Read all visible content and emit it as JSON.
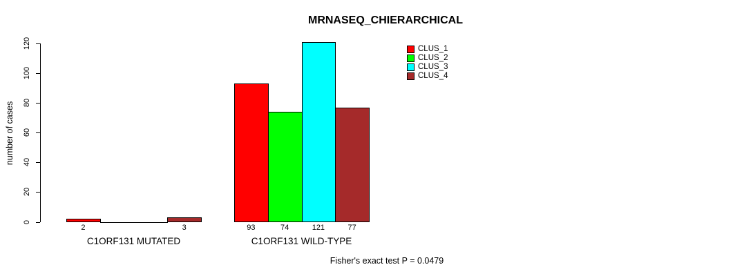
{
  "title": "MRNASEQ_CHIERARCHICAL",
  "footer": "Fisher's exact test P = 0.0479",
  "chart_data": {
    "type": "bar",
    "title": "MRNASEQ_CHIERARCHICAL",
    "xlabel": "",
    "ylabel": "number of cases",
    "ylim": [
      0,
      120
    ],
    "yticks": [
      0,
      20,
      40,
      60,
      80,
      100,
      120
    ],
    "grid": false,
    "legend_position": "top-right",
    "categories": [
      "C1ORF131 MUTATED",
      "C1ORF131 WILD-TYPE"
    ],
    "series": [
      {
        "name": "CLUS_1",
        "color": "#FF0000",
        "values": [
          2,
          93
        ]
      },
      {
        "name": "CLUS_2",
        "color": "#00FF00",
        "values": [
          0,
          74
        ]
      },
      {
        "name": "CLUS_3",
        "color": "#00FFFF",
        "values": [
          0,
          121
        ]
      },
      {
        "name": "CLUS_4",
        "color": "#A52A2A",
        "values": [
          3,
          77
        ]
      }
    ],
    "value_labels": [
      [
        "2",
        "",
        "",
        "3"
      ],
      [
        "93",
        "74",
        "121",
        "77"
      ]
    ],
    "annotation": "Fisher's exact test P = 0.0479"
  }
}
